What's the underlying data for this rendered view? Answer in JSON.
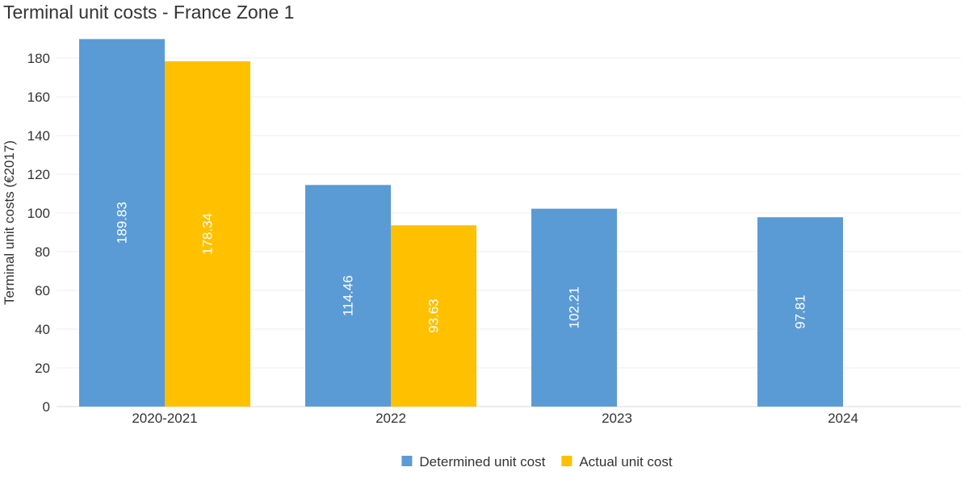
{
  "chart_data": {
    "type": "bar",
    "title": "Terminal unit costs - France Zone 1",
    "xlabel": "",
    "ylabel": "Terminal unit costs (€2017)",
    "categories": [
      "2020-2021",
      "2022",
      "2023",
      "2024"
    ],
    "series": [
      {
        "name": "Determined unit cost",
        "color": "#5b9bd5",
        "values": [
          189.83,
          114.46,
          102.21,
          97.81
        ]
      },
      {
        "name": "Actual unit cost",
        "color": "#ffc000",
        "values": [
          178.34,
          93.63,
          null,
          null
        ]
      }
    ],
    "ylim": [
      0,
      190
    ],
    "yticks": [
      0,
      20,
      40,
      60,
      80,
      100,
      120,
      140,
      160,
      180
    ],
    "grid": true,
    "legend_position": "bottom-center"
  }
}
